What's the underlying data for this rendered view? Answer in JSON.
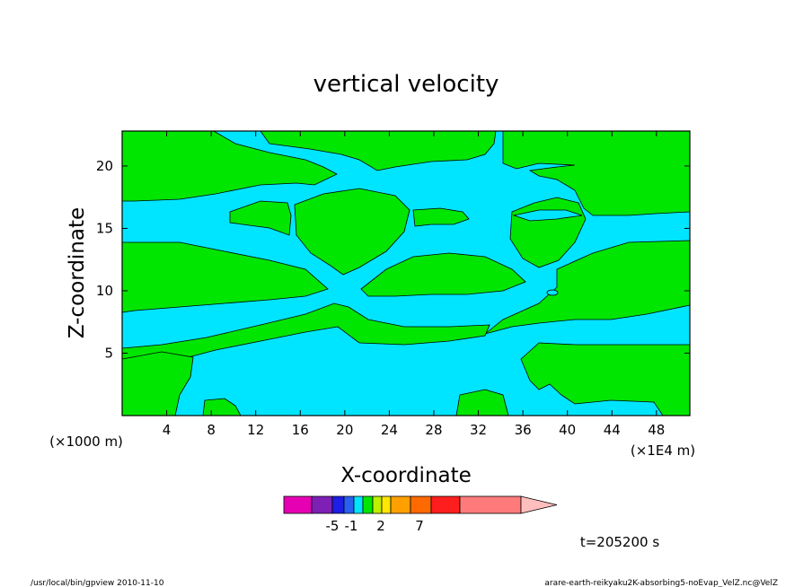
{
  "chart_data": {
    "type": "heatmap",
    "title": "vertical velocity",
    "xlabel": "X-coordinate",
    "ylabel": "Z-coordinate",
    "x_unit_left": "(×1000 m)",
    "x_unit_right": "(×1E4 m)",
    "x_ticks": [
      4,
      8,
      12,
      16,
      20,
      24,
      28,
      32,
      36,
      40,
      44,
      48
    ],
    "y_ticks": [
      5,
      10,
      15,
      20
    ],
    "xlim": [
      0,
      51
    ],
    "ylim": [
      0,
      22.8
    ],
    "time_label": "t=205200 s",
    "colorbar": {
      "tick_labels": [
        "-5",
        "-1",
        "2",
        "7"
      ],
      "colors": [
        "#e600b4",
        "#7e1fb5",
        "#1e1ee6",
        "#2a60f0",
        "#00e5ff",
        "#00e600",
        "#bff000",
        "#ffe600",
        "#ffa000",
        "#ff6a00",
        "#ff1e1e",
        "#ff7b7b",
        "#ffbebe"
      ]
    },
    "fields": {
      "positive_color": "#00e600",
      "negative_color": "#00e5ff"
    }
  },
  "footer": {
    "left": "/usr/local/bin/gpview  2010-11-10",
    "right": "arare-earth-reikyaku2K-absorbing5-noEvap_VelZ.nc@VelZ"
  }
}
